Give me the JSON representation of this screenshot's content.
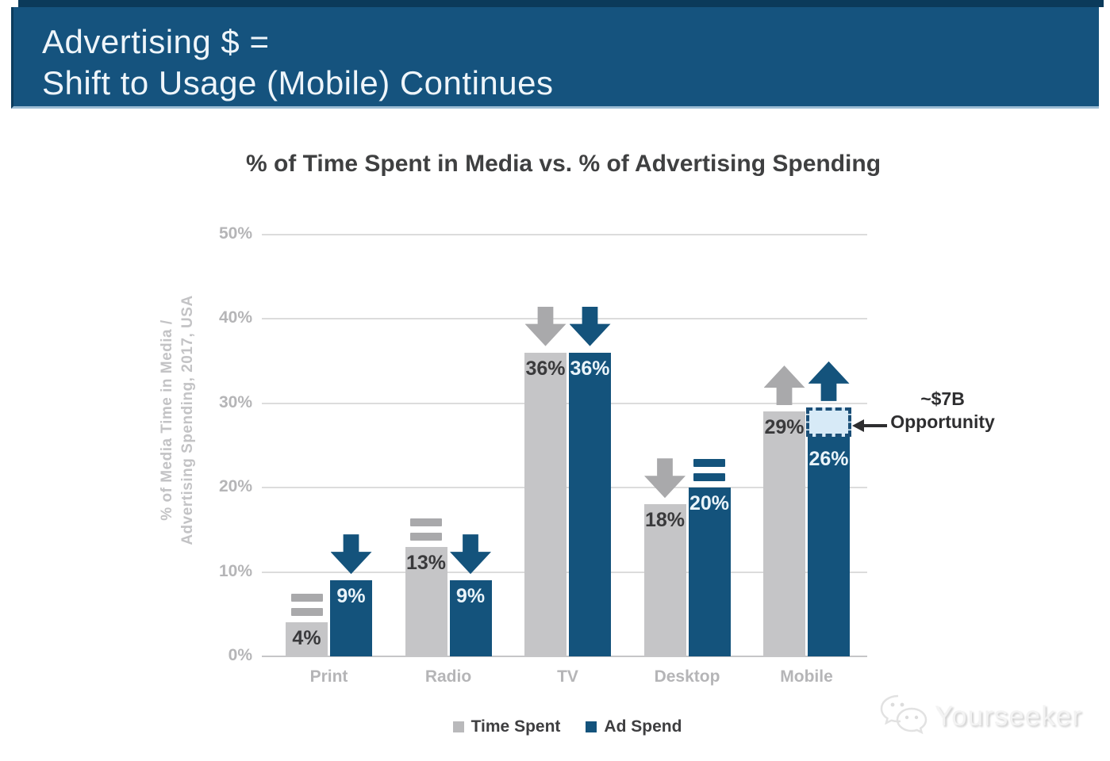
{
  "slide": {
    "title_line1": "Advertising $ =",
    "title_line2": "Shift to Usage (Mobile) Continues"
  },
  "chart_data": {
    "type": "bar",
    "title": "% of Time Spent in Media vs. % of Advertising Spending",
    "ylabel": [
      "% of Media Time in Media /",
      "Advertising Spending, 2017, USA"
    ],
    "categories": [
      "Print",
      "Radio",
      "TV",
      "Desktop",
      "Mobile"
    ],
    "series": [
      {
        "name": "Time Spent",
        "swatch": "gray",
        "values": [
          4,
          13,
          36,
          18,
          29
        ],
        "labels": [
          "4%",
          "13%",
          "36%",
          "18%",
          "29%"
        ],
        "trends": [
          "flat",
          "flat",
          "down",
          "down",
          "up"
        ]
      },
      {
        "name": "Ad Spend",
        "swatch": "blue",
        "values": [
          9,
          9,
          36,
          20,
          26
        ],
        "labels": [
          "9%",
          "9%",
          "36%",
          "20%",
          "26%"
        ],
        "trends": [
          "down",
          "down",
          "down",
          "flat",
          "up"
        ]
      }
    ],
    "y_ticks": [
      "0%",
      "10%",
      "20%",
      "30%",
      "40%",
      "50%"
    ],
    "ylim": [
      0,
      50
    ],
    "grid": true,
    "legend_position": "bottom",
    "opportunity_box": {
      "category": "Mobile",
      "series": "Ad Spend",
      "from_pct": 26,
      "to_pct": 29.5
    },
    "annotation": {
      "line1": "~$7B",
      "line2": "Opportunity",
      "attached_to": "Mobile Ad Spend opportunity gap"
    }
  },
  "legend": {
    "items": [
      {
        "label": "Time Spent",
        "swatch": "gray"
      },
      {
        "label": "Ad Spend",
        "swatch": "blue"
      }
    ]
  },
  "watermark": {
    "brand": "Yourseeker",
    "icon": "wechat-icon"
  },
  "colors": {
    "banner_bg": "#15537e",
    "banner_border_dark": "#0b3a5a",
    "banner_border_light": "#9cbcd4",
    "bar_gray": "#c5c5c7",
    "bar_blue": "#14537c",
    "trend_icon_gray": "#a9a9ab",
    "trend_icon_blue": "#14537c",
    "opportunity_fill": "#d7eaf7",
    "opportunity_border": "#1b4f77",
    "gridline": "#dcdcdc",
    "axis_text": "#b5b5b7",
    "title_text": "#3f4041",
    "value_label_dark": "#3a3a3c",
    "value_label_light": "#ffffff",
    "annotation_text": "#2e2e30"
  }
}
